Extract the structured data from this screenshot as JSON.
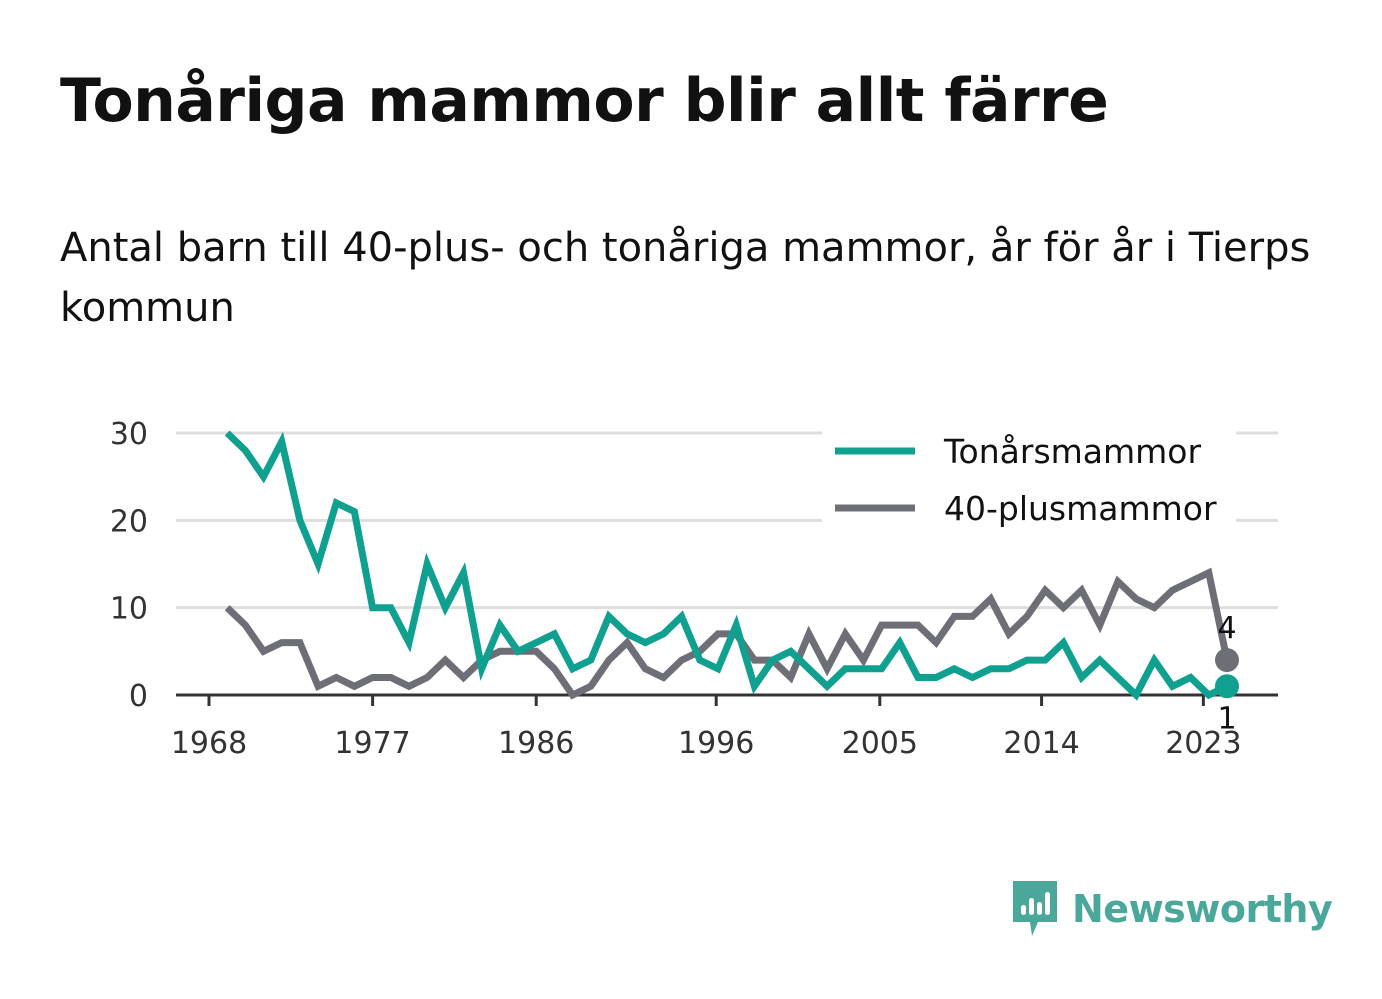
{
  "title": "Tonåriga mammor blir allt färre",
  "subtitle": "Antal barn till 40-plus- och tonåriga mammor, år för år i Tierps kommun",
  "brand": "Newsworthy",
  "colors": {
    "teal": "#0fa090",
    "gray": "#6e6e76",
    "grid": "#dedede",
    "axis": "#333333",
    "brand": "#4aa89a"
  },
  "chart_data": {
    "type": "line",
    "x": [
      1969,
      1970,
      1971,
      1972,
      1973,
      1974,
      1975,
      1976,
      1977,
      1978,
      1979,
      1980,
      1981,
      1982,
      1983,
      1984,
      1985,
      1986,
      1987,
      1988,
      1989,
      1990,
      1991,
      1992,
      1993,
      1994,
      1995,
      1996,
      1997,
      1998,
      1999,
      2000,
      2001,
      2002,
      2003,
      2004,
      2005,
      2006,
      2007,
      2008,
      2009,
      2010,
      2011,
      2012,
      2013,
      2014,
      2015,
      2016,
      2017,
      2018,
      2019,
      2020,
      2021,
      2022,
      2023,
      2024
    ],
    "series": [
      {
        "name": "Tonårsmammor",
        "color": "#0fa090",
        "values": [
          30,
          28,
          25,
          29,
          20,
          15,
          22,
          21,
          10,
          10,
          6,
          15,
          10,
          14,
          3,
          8,
          5,
          6,
          7,
          3,
          4,
          9,
          7,
          6,
          7,
          9,
          4,
          3,
          8,
          1,
          4,
          5,
          3,
          1,
          3,
          3,
          3,
          6,
          2,
          2,
          3,
          2,
          3,
          3,
          4,
          4,
          6,
          2,
          4,
          2,
          0,
          4,
          1,
          2,
          0,
          1
        ]
      },
      {
        "name": "40-plusmammor",
        "color": "#6e6e76",
        "values": [
          10,
          8,
          5,
          6,
          6,
          1,
          2,
          1,
          2,
          2,
          1,
          2,
          4,
          2,
          4,
          5,
          5,
          5,
          3,
          0,
          1,
          4,
          6,
          3,
          2,
          4,
          5,
          7,
          7,
          4,
          4,
          2,
          7,
          3,
          7,
          4,
          8,
          8,
          8,
          6,
          9,
          9,
          11,
          7,
          9,
          12,
          10,
          12,
          8,
          13,
          11,
          10,
          12,
          13,
          14,
          4
        ]
      }
    ],
    "end_labels": [
      {
        "series": "40-plusmammor",
        "text": "4"
      },
      {
        "series": "Tonårsmammor",
        "text": "1"
      }
    ],
    "y_ticks": [
      "0",
      "10",
      "20",
      "30"
    ],
    "x_ticks": [
      "1968",
      "1977",
      "1986",
      "1996",
      "2005",
      "2014",
      "2023"
    ],
    "x_tick_years": [
      1968,
      1977,
      1986,
      1995.9,
      2004.9,
      2013.8,
      2022.7
    ],
    "ylim": [
      0,
      30
    ],
    "xlim": [
      1968,
      2024
    ],
    "grid": true,
    "legend": "top-right"
  }
}
